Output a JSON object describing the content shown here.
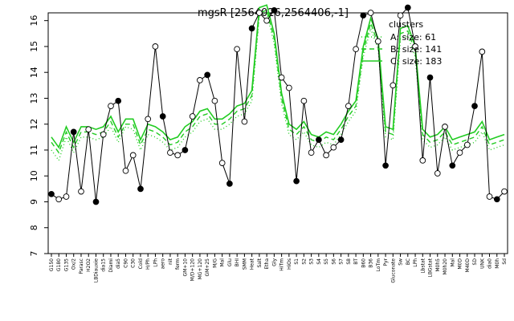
{
  "chart_data": {
    "type": "line",
    "title": "mgsR [2564026,2564406,-1]",
    "ylim": [
      7,
      16.3
    ],
    "yticks": [
      7,
      8,
      9,
      10,
      11,
      12,
      13,
      14,
      15,
      16
    ],
    "xtick_labels": [
      "G150",
      "G180",
      "G135",
      "Ox/2",
      "Parasc",
      "H2O2",
      "LBDiauxie",
      "dia15",
      "Diami",
      "dia5",
      "C90",
      "C30",
      "Cold",
      "H/Ph",
      "LPh",
      "aero",
      "nit",
      "ferm",
      "GM+10",
      "M/D+120",
      "MG+120",
      "GM+25",
      "M/G",
      "Mal",
      "Glu",
      "BHI",
      "SMM",
      "Heat",
      "Salt",
      "Etha",
      "Gly",
      "HiTm",
      "HiOs",
      "S1",
      "S2",
      "S3",
      "S4",
      "S5",
      "S6",
      "S7",
      "S8",
      "BT",
      "B60",
      "B36",
      "LoTm",
      "Pyr",
      "Gluconate",
      "Sw",
      "BC",
      "LPh",
      "Lbstat",
      "LBGstat",
      "M0h5",
      "M0h20",
      "Mal",
      "M0D",
      "M40D",
      "SD",
      "UNK",
      "dia0",
      "M0h",
      "Sd"
    ],
    "series": [
      {
        "name": "A",
        "values": [
          11.0,
          10.6,
          11.5,
          10.9,
          11.5,
          11.5,
          11.4,
          11.5,
          11.9,
          11.3,
          11.9,
          11.8,
          11.0,
          11.6,
          11.5,
          11.3,
          11.0,
          11.1,
          11.5,
          11.7,
          12.1,
          12.2,
          11.8,
          11.8,
          12.0,
          12.3,
          12.4,
          12.9,
          16.2,
          16.3,
          15.1,
          12.8,
          11.6,
          11.4,
          11.7,
          11.2,
          11.1,
          11.3,
          11.2,
          11.6,
          12.1,
          12.5,
          14.6,
          15.7,
          14.9,
          11.5,
          11.4,
          15.3,
          15.4,
          14.6,
          11.4,
          11.1,
          11.2,
          11.5,
          11.0,
          11.1,
          11.2,
          11.3,
          11.7,
          11.0,
          11.1,
          11.2
        ]
      },
      {
        "name": "B",
        "values": [
          11.3,
          10.9,
          11.7,
          11.1,
          11.7,
          11.7,
          11.6,
          11.7,
          12.1,
          11.5,
          12.0,
          12.0,
          11.2,
          11.8,
          11.7,
          11.5,
          11.2,
          11.3,
          11.7,
          11.9,
          12.3,
          12.4,
          12.0,
          12.0,
          12.2,
          12.5,
          12.6,
          13.1,
          16.3,
          16.4,
          15.3,
          13.0,
          11.8,
          11.6,
          11.9,
          11.4,
          11.3,
          11.5,
          11.4,
          11.8,
          12.3,
          12.7,
          14.8,
          15.9,
          15.1,
          11.7,
          11.6,
          15.5,
          15.6,
          14.8,
          11.6,
          11.3,
          11.4,
          11.7,
          11.2,
          11.3,
          11.4,
          11.5,
          11.9,
          11.2,
          11.3,
          11.4
        ]
      },
      {
        "name": "C",
        "values": [
          11.5,
          11.1,
          11.9,
          11.3,
          11.9,
          11.9,
          11.8,
          11.9,
          12.3,
          11.7,
          12.2,
          12.2,
          11.4,
          12.0,
          11.9,
          11.7,
          11.4,
          11.5,
          11.9,
          12.1,
          12.5,
          12.6,
          12.2,
          12.2,
          12.4,
          12.7,
          12.8,
          13.3,
          16.5,
          16.6,
          15.5,
          13.2,
          12.0,
          11.8,
          12.1,
          11.6,
          11.5,
          11.7,
          11.6,
          12.0,
          12.5,
          12.9,
          15.0,
          16.1,
          15.3,
          11.9,
          11.8,
          15.7,
          15.8,
          15.0,
          11.8,
          11.5,
          11.6,
          11.9,
          11.4,
          11.5,
          11.6,
          11.7,
          12.1,
          11.4,
          11.5,
          11.6
        ]
      },
      {
        "name": "points",
        "values": [
          9.3,
          9.1,
          9.2,
          11.7,
          9.4,
          11.8,
          9.0,
          11.6,
          12.7,
          12.9,
          10.2,
          10.8,
          9.5,
          12.2,
          15.0,
          12.3,
          10.9,
          10.8,
          11.0,
          12.3,
          13.7,
          13.9,
          12.9,
          10.5,
          9.7,
          14.9,
          12.1,
          15.7,
          16.3,
          16.0,
          16.4,
          13.8,
          13.4,
          9.8,
          12.9,
          10.9,
          11.4,
          10.8,
          11.1,
          11.4,
          12.7,
          14.9,
          16.2,
          16.3,
          15.2,
          10.4,
          13.5,
          16.2,
          16.5,
          15.0,
          10.6,
          13.8,
          10.1,
          11.9,
          10.4,
          10.9,
          11.2,
          12.7,
          14.8,
          9.2,
          9.1,
          9.4
        ]
      }
    ],
    "legend": {
      "title": "clusters",
      "position": "top-right",
      "entries": [
        "A: size: 61",
        "B: size: 141",
        "C: size: 183"
      ]
    }
  }
}
